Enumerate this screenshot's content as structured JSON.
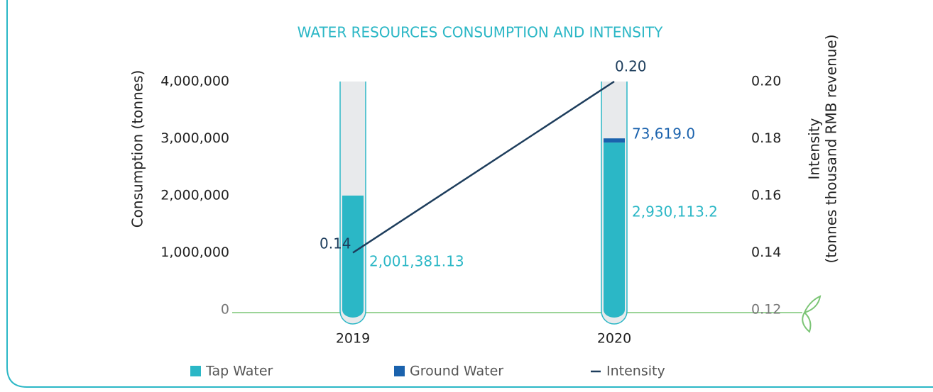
{
  "chart_data": {
    "type": "bar",
    "title": "WATER RESOURCES CONSUMPTION AND INTENSITY",
    "ylabel": "Consumption (tonnes)",
    "y2label": [
      "Intensity",
      "(tonnes thousand RMB revenue)"
    ],
    "categories": [
      "2019",
      "2020"
    ],
    "series": [
      {
        "name": "Tap Water",
        "color": "#2bb7c6",
        "values": [
          2001381.13,
          2930113.2
        ],
        "value_labels": [
          "2,001,381.13",
          "2,930,113.2"
        ]
      },
      {
        "name": "Ground Water",
        "color": "#1a62ad",
        "values": [
          null,
          73619.0
        ],
        "value_labels": [
          null,
          "73,619.0"
        ]
      },
      {
        "name": "Intensity",
        "color": "#1d3d5c",
        "type": "line",
        "axis": "y2",
        "values": [
          0.14,
          0.2
        ],
        "value_labels": [
          "0.14",
          "0.20"
        ]
      }
    ],
    "ylim": [
      0,
      4000000
    ],
    "yticks": [
      0,
      {
        "value": 1000000,
        "label": "1,000,000"
      },
      {
        "value": 2000000,
        "label": "2,000,000"
      },
      {
        "value": 3000000,
        "label": "3,000,000"
      },
      {
        "value": 4000000,
        "label": "4,000,000"
      }
    ],
    "y2lim": [
      0.12,
      0.2
    ],
    "y2ticks": [
      0.12,
      0.14,
      0.16,
      0.18,
      {
        "value": 0.2,
        "label": "0.20"
      }
    ],
    "stacked": true,
    "grid": false
  }
}
